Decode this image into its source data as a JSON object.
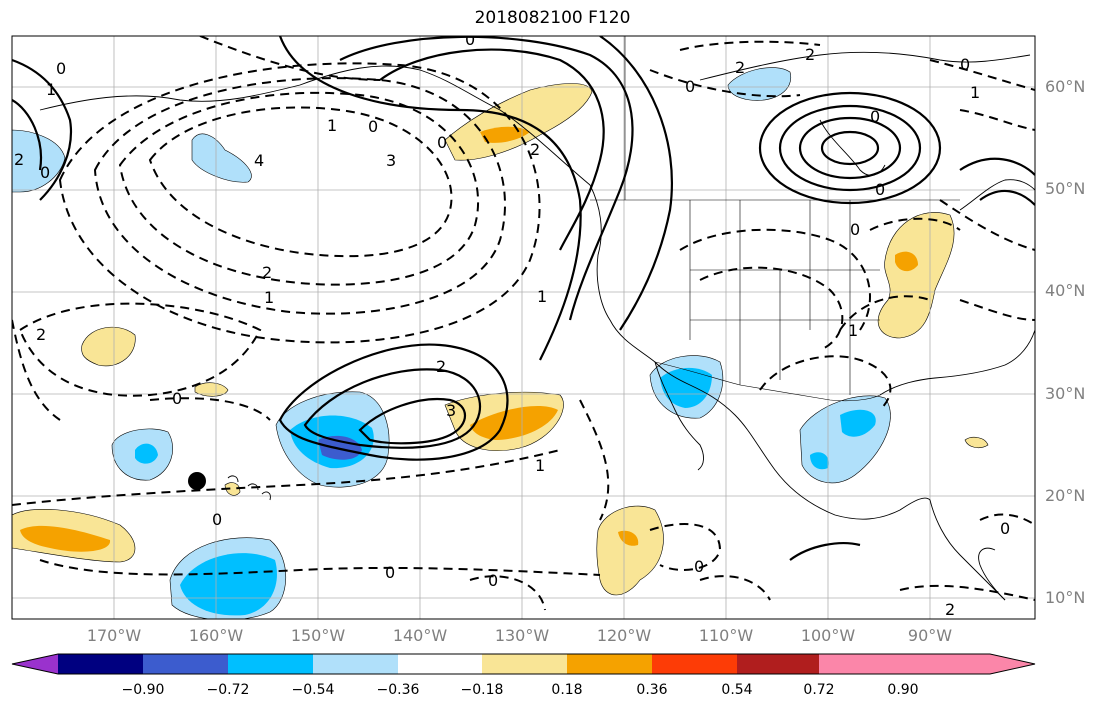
{
  "title": "2018082100 F120",
  "lat_labels": [
    "60°N",
    "50°N",
    "40°N",
    "30°N",
    "20°N",
    "10°N"
  ],
  "lon_labels": [
    "170°W",
    "160°W",
    "150°W",
    "140°W",
    "130°W",
    "120°W",
    "110°W",
    "100°W",
    "90°W"
  ],
  "colorbar": {
    "colors": [
      "#9a32cd",
      "#000080",
      "#3c5cce",
      "#00bfff",
      "#b0e0fa",
      "#ffffff",
      "#f9e596",
      "#f5a200",
      "#fd3c06",
      "#b01e1e",
      "#fb86a9"
    ],
    "ticks": [
      "−0.90",
      "−0.72",
      "−0.54",
      "−0.36",
      "−0.18",
      "0.18",
      "0.36",
      "0.54",
      "0.72",
      "0.90"
    ]
  },
  "contour_labels": [
    "0",
    "1",
    "2",
    "0",
    "0",
    "0",
    "1",
    "0",
    "2",
    "3",
    "4",
    "2",
    "1",
    "2",
    "0",
    "2",
    "3",
    "1",
    "1",
    "0",
    "0",
    "0",
    "0",
    "2",
    "0",
    "0",
    "1",
    "2",
    "0",
    "2",
    "0",
    "1",
    "0",
    "0"
  ]
}
